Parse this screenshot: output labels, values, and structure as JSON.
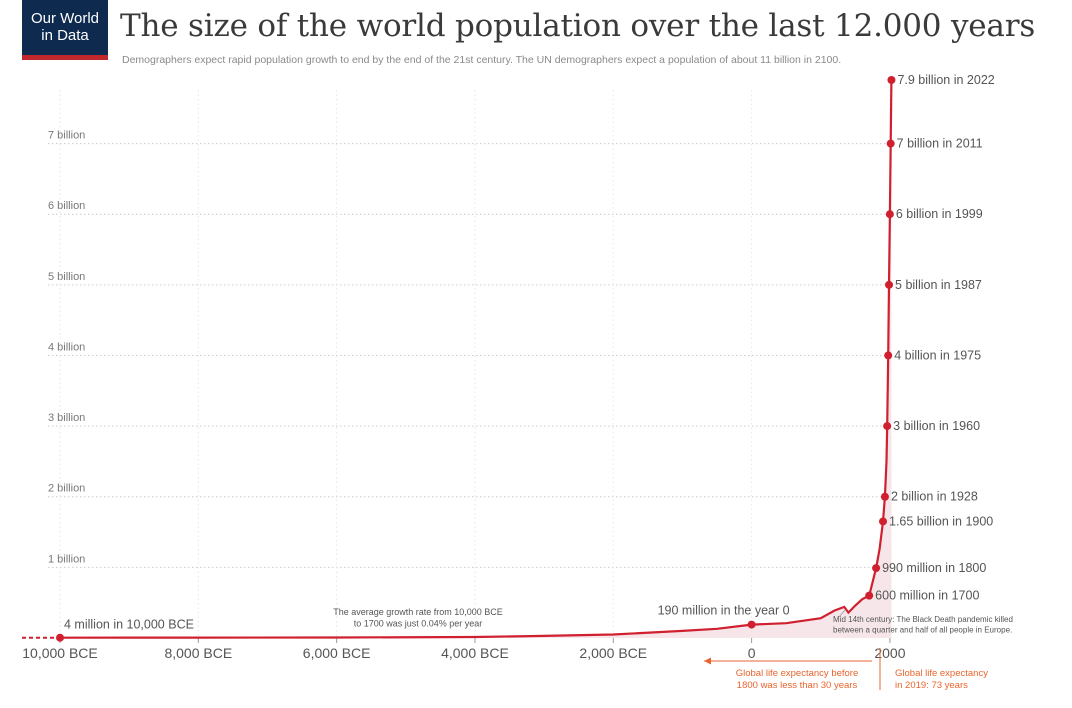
{
  "logo": {
    "line1": "Our World",
    "line2": "in Data"
  },
  "header": {
    "title": "The size of the world population over the last 12.000 years",
    "subtitle": "Demographers expect rapid population growth to end by the end of the 21st century. The UN demographers expect a population of about 11 billion in 2100."
  },
  "colors": {
    "line": "#d0202f",
    "area": "#f3dde1",
    "grid": "#cccccc",
    "annotation": "#e8642c",
    "logo_bg": "#0e2a4f",
    "logo_accent": "#c0282d"
  },
  "chart_data": {
    "type": "line",
    "title": "The size of the world population over the last 12.000 years",
    "xlabel": "",
    "ylabel": "",
    "xlim": [
      -10000,
      2030
    ],
    "ylim": [
      0,
      7.9
    ],
    "grid": true,
    "x_ticks": [
      {
        "value": -10000,
        "label": "10,000 BCE"
      },
      {
        "value": -8000,
        "label": "8,000 BCE"
      },
      {
        "value": -6000,
        "label": "6,000 BCE"
      },
      {
        "value": -4000,
        "label": "4,000 BCE"
      },
      {
        "value": -2000,
        "label": "2,000 BCE"
      },
      {
        "value": 0,
        "label": "0"
      },
      {
        "value": 2000,
        "label": "2000"
      }
    ],
    "y_ticks": [
      {
        "value": 1,
        "label": "1 billion"
      },
      {
        "value": 2,
        "label": "2 billion"
      },
      {
        "value": 3,
        "label": "3 billion"
      },
      {
        "value": 4,
        "label": "4 billion"
      },
      {
        "value": 5,
        "label": "5 billion"
      },
      {
        "value": 6,
        "label": "6 billion"
      },
      {
        "value": 7,
        "label": "7 billion"
      }
    ],
    "series": [
      {
        "points": [
          {
            "x": -10000,
            "y": 0.004
          },
          {
            "x": -8000,
            "y": 0.005
          },
          {
            "x": -6000,
            "y": 0.007
          },
          {
            "x": -4000,
            "y": 0.014
          },
          {
            "x": -3000,
            "y": 0.03
          },
          {
            "x": -2000,
            "y": 0.05
          },
          {
            "x": -1000,
            "y": 0.1
          },
          {
            "x": -500,
            "y": 0.13
          },
          {
            "x": 0,
            "y": 0.19
          },
          {
            "x": 500,
            "y": 0.21
          },
          {
            "x": 1000,
            "y": 0.28
          },
          {
            "x": 1200,
            "y": 0.39
          },
          {
            "x": 1340,
            "y": 0.44
          },
          {
            "x": 1400,
            "y": 0.36
          },
          {
            "x": 1500,
            "y": 0.46
          },
          {
            "x": 1600,
            "y": 0.55
          },
          {
            "x": 1700,
            "y": 0.6
          },
          {
            "x": 1800,
            "y": 0.99
          },
          {
            "x": 1850,
            "y": 1.26
          },
          {
            "x": 1900,
            "y": 1.65
          },
          {
            "x": 1928,
            "y": 2.0
          },
          {
            "x": 1950,
            "y": 2.5
          },
          {
            "x": 1960,
            "y": 3.0
          },
          {
            "x": 1975,
            "y": 4.0
          },
          {
            "x": 1987,
            "y": 5.0
          },
          {
            "x": 1999,
            "y": 6.0
          },
          {
            "x": 2011,
            "y": 7.0
          },
          {
            "x": 2022,
            "y": 7.9
          }
        ]
      }
    ],
    "markers": [
      {
        "x": -10000,
        "y": 0.004,
        "label": "4 million in 10,000 BCE",
        "side": "right-above"
      },
      {
        "x": 0,
        "y": 0.19,
        "label": "190 million in the year 0",
        "side": "above"
      },
      {
        "x": 1700,
        "y": 0.6,
        "label": "600 million in 1700",
        "side": "right"
      },
      {
        "x": 1800,
        "y": 0.99,
        "label": "990 million in 1800",
        "side": "right"
      },
      {
        "x": 1900,
        "y": 1.65,
        "label": "1.65 billion in 1900",
        "side": "right"
      },
      {
        "x": 1928,
        "y": 2.0,
        "label": "2 billion in 1928",
        "side": "right"
      },
      {
        "x": 1960,
        "y": 3.0,
        "label": "3 billion in 1960",
        "side": "right"
      },
      {
        "x": 1975,
        "y": 4.0,
        "label": "4 billion in 1975",
        "side": "right"
      },
      {
        "x": 1987,
        "y": 5.0,
        "label": "5 billion in 1987",
        "side": "right"
      },
      {
        "x": 1999,
        "y": 6.0,
        "label": "6 billion in 1999",
        "side": "right"
      },
      {
        "x": 2011,
        "y": 7.0,
        "label": "7 billion in 2011",
        "side": "right"
      },
      {
        "x": 2022,
        "y": 7.9,
        "label": "7.9 billion in 2022",
        "side": "right"
      }
    ],
    "annotations": [
      {
        "id": "growth-rate",
        "lines": [
          "The average growth rate from 10,000 BCE",
          "to 1700 was just 0.04% per year"
        ]
      },
      {
        "id": "black-death",
        "lines": [
          "Mid 14th century: The Black Death pandemic killed",
          "between a quarter and half of all people in Europe."
        ]
      },
      {
        "id": "life-before",
        "lines": [
          "Global life expectancy before",
          "1800 was less than 30 years"
        ]
      },
      {
        "id": "life-2019",
        "lines": [
          "Global life expectancy",
          "in 2019: 73 years"
        ]
      }
    ]
  }
}
